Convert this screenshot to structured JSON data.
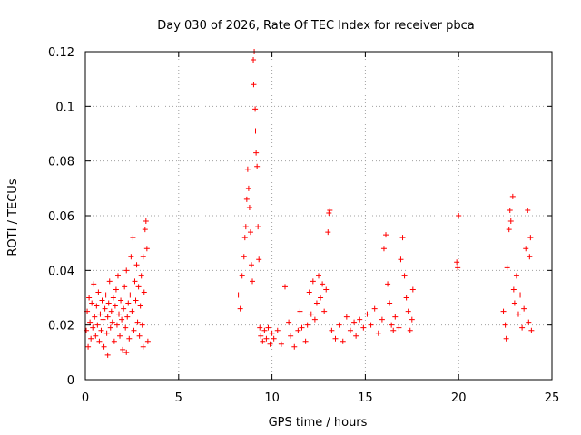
{
  "chart_data": {
    "type": "scatter",
    "title": "Day 030 of 2026, Rate Of TEC Index for receiver pbca",
    "xlabel": "GPS time / hours",
    "ylabel": "ROTI / TECUs",
    "xlim": [
      0,
      25
    ],
    "ylim": [
      0,
      0.12
    ],
    "xticks": [
      "0",
      "5",
      "10",
      "15",
      "20",
      "25"
    ],
    "yticks": [
      "0",
      "0.02",
      "0.04",
      "0.06",
      "0.08",
      "0.1",
      "0.12"
    ],
    "grid": true,
    "marker": "plus",
    "color": "#ff0000",
    "series": [
      {
        "points": [
          [
            0.05,
            0.018
          ],
          [
            0.1,
            0.025
          ],
          [
            0.15,
            0.012
          ],
          [
            0.2,
            0.03
          ],
          [
            0.25,
            0.021
          ],
          [
            0.3,
            0.015
          ],
          [
            0.35,
            0.028
          ],
          [
            0.4,
            0.019
          ],
          [
            0.45,
            0.035
          ],
          [
            0.5,
            0.023
          ],
          [
            0.55,
            0.016
          ],
          [
            0.6,
            0.027
          ],
          [
            0.65,
            0.02
          ],
          [
            0.7,
            0.032
          ],
          [
            0.75,
            0.014
          ],
          [
            0.8,
            0.024
          ],
          [
            0.85,
            0.018
          ],
          [
            0.9,
            0.029
          ],
          [
            0.95,
            0.022
          ],
          [
            1.0,
            0.012
          ],
          [
            1.05,
            0.026
          ],
          [
            1.1,
            0.031
          ],
          [
            1.15,
            0.017
          ],
          [
            1.2,
            0.023
          ],
          [
            1.25,
            0.028
          ],
          [
            1.3,
            0.036
          ],
          [
            1.35,
            0.019
          ],
          [
            1.4,
            0.025
          ],
          [
            1.45,
            0.021
          ],
          [
            1.5,
            0.03
          ],
          [
            1.55,
            0.014
          ],
          [
            1.6,
            0.027
          ],
          [
            1.65,
            0.033
          ],
          [
            1.7,
            0.02
          ],
          [
            1.75,
            0.038
          ],
          [
            1.8,
            0.024
          ],
          [
            1.85,
            0.016
          ],
          [
            1.9,
            0.029
          ],
          [
            1.95,
            0.022
          ],
          [
            2.0,
            0.011
          ],
          [
            2.05,
            0.026
          ],
          [
            2.1,
            0.034
          ],
          [
            2.15,
            0.019
          ],
          [
            2.2,
            0.04
          ],
          [
            2.25,
            0.023
          ],
          [
            2.3,
            0.028
          ],
          [
            2.35,
            0.015
          ],
          [
            2.4,
            0.031
          ],
          [
            2.45,
            0.045
          ],
          [
            2.5,
            0.025
          ],
          [
            2.55,
            0.052
          ],
          [
            2.6,
            0.018
          ],
          [
            2.65,
            0.036
          ],
          [
            2.7,
            0.029
          ],
          [
            2.75,
            0.042
          ],
          [
            2.8,
            0.021
          ],
          [
            2.85,
            0.034
          ],
          [
            2.9,
            0.016
          ],
          [
            2.95,
            0.027
          ],
          [
            3.0,
            0.038
          ],
          [
            3.05,
            0.02
          ],
          [
            3.1,
            0.045
          ],
          [
            3.15,
            0.032
          ],
          [
            3.2,
            0.055
          ],
          [
            3.25,
            0.058
          ],
          [
            3.3,
            0.048
          ],
          [
            3.35,
            0.014
          ],
          [
            3.1,
            0.012
          ],
          [
            2.2,
            0.01
          ],
          [
            1.2,
            0.009
          ],
          [
            8.2,
            0.031
          ],
          [
            8.3,
            0.026
          ],
          [
            8.4,
            0.038
          ],
          [
            8.5,
            0.045
          ],
          [
            8.55,
            0.052
          ],
          [
            8.6,
            0.056
          ],
          [
            8.65,
            0.066
          ],
          [
            8.7,
            0.077
          ],
          [
            8.75,
            0.07
          ],
          [
            8.8,
            0.063
          ],
          [
            8.85,
            0.054
          ],
          [
            8.9,
            0.042
          ],
          [
            8.95,
            0.036
          ],
          [
            9.0,
            0.117
          ],
          [
            9.02,
            0.108
          ],
          [
            9.05,
            0.12
          ],
          [
            9.1,
            0.099
          ],
          [
            9.12,
            0.091
          ],
          [
            9.15,
            0.083
          ],
          [
            9.2,
            0.078
          ],
          [
            9.25,
            0.056
          ],
          [
            9.3,
            0.044
          ],
          [
            9.35,
            0.019
          ],
          [
            9.4,
            0.016
          ],
          [
            9.5,
            0.014
          ],
          [
            9.6,
            0.018
          ],
          [
            9.7,
            0.015
          ],
          [
            9.8,
            0.019
          ],
          [
            9.9,
            0.013
          ],
          [
            10.0,
            0.017
          ],
          [
            10.1,
            0.015
          ],
          [
            10.3,
            0.018
          ],
          [
            10.5,
            0.013
          ],
          [
            10.7,
            0.034
          ],
          [
            10.9,
            0.021
          ],
          [
            11.0,
            0.016
          ],
          [
            11.2,
            0.012
          ],
          [
            11.4,
            0.018
          ],
          [
            11.5,
            0.025
          ],
          [
            11.6,
            0.019
          ],
          [
            11.8,
            0.014
          ],
          [
            11.9,
            0.02
          ],
          [
            12.0,
            0.032
          ],
          [
            12.1,
            0.024
          ],
          [
            12.2,
            0.036
          ],
          [
            12.3,
            0.022
          ],
          [
            12.4,
            0.028
          ],
          [
            12.5,
            0.038
          ],
          [
            12.6,
            0.03
          ],
          [
            12.7,
            0.035
          ],
          [
            12.8,
            0.025
          ],
          [
            12.9,
            0.033
          ],
          [
            13.0,
            0.054
          ],
          [
            13.05,
            0.061
          ],
          [
            13.1,
            0.062
          ],
          [
            13.2,
            0.018
          ],
          [
            13.4,
            0.015
          ],
          [
            13.6,
            0.02
          ],
          [
            13.8,
            0.014
          ],
          [
            14.0,
            0.023
          ],
          [
            14.2,
            0.018
          ],
          [
            14.4,
            0.021
          ],
          [
            14.5,
            0.016
          ],
          [
            14.7,
            0.022
          ],
          [
            14.9,
            0.019
          ],
          [
            15.1,
            0.024
          ],
          [
            15.3,
            0.02
          ],
          [
            15.5,
            0.026
          ],
          [
            15.7,
            0.017
          ],
          [
            15.9,
            0.022
          ],
          [
            16.0,
            0.048
          ],
          [
            16.1,
            0.053
          ],
          [
            16.2,
            0.035
          ],
          [
            16.3,
            0.028
          ],
          [
            16.4,
            0.02
          ],
          [
            16.5,
            0.018
          ],
          [
            16.6,
            0.023
          ],
          [
            16.8,
            0.019
          ],
          [
            16.9,
            0.044
          ],
          [
            17.0,
            0.052
          ],
          [
            17.1,
            0.038
          ],
          [
            17.2,
            0.03
          ],
          [
            17.3,
            0.025
          ],
          [
            17.4,
            0.018
          ],
          [
            17.5,
            0.022
          ],
          [
            17.55,
            0.033
          ],
          [
            20.0,
            0.06
          ],
          [
            19.9,
            0.043
          ],
          [
            19.95,
            0.041
          ],
          [
            22.4,
            0.025
          ],
          [
            22.5,
            0.02
          ],
          [
            22.55,
            0.015
          ],
          [
            22.6,
            0.041
          ],
          [
            22.7,
            0.055
          ],
          [
            22.75,
            0.062
          ],
          [
            22.8,
            0.058
          ],
          [
            22.9,
            0.067
          ],
          [
            22.95,
            0.033
          ],
          [
            23.0,
            0.028
          ],
          [
            23.1,
            0.038
          ],
          [
            23.2,
            0.024
          ],
          [
            23.3,
            0.031
          ],
          [
            23.4,
            0.019
          ],
          [
            23.5,
            0.026
          ],
          [
            23.6,
            0.048
          ],
          [
            23.7,
            0.062
          ],
          [
            23.75,
            0.021
          ],
          [
            23.8,
            0.045
          ],
          [
            23.85,
            0.052
          ],
          [
            23.9,
            0.018
          ]
        ]
      }
    ]
  }
}
